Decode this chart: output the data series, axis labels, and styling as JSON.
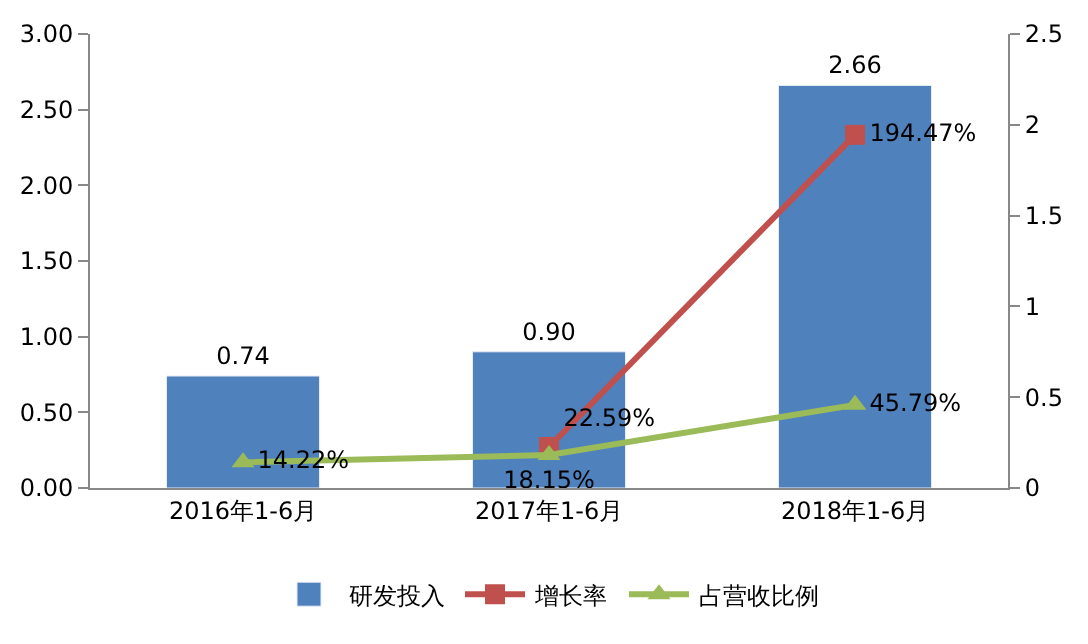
{
  "chart_data": {
    "type": "bar",
    "categories": [
      "2016年1-6月",
      "2017年1-6月",
      "2018年1-6月"
    ],
    "series": [
      {
        "name": "研发投入",
        "color": "#4f81bd",
        "values": [
          0.74,
          0.9,
          2.66
        ],
        "value_labels": [
          "0.74",
          "0.90",
          "2.66"
        ]
      },
      {
        "name": "增长率",
        "type": "line",
        "axis": "y2",
        "color": "#c0504d",
        "marker": "square",
        "values": [
          null,
          0.2259,
          1.9447
        ],
        "value_labels": [
          null,
          "22.59%",
          "194.47%"
        ]
      },
      {
        "name": "占营收比例",
        "type": "line",
        "axis": "y2",
        "color": "#9bbb59",
        "marker": "triangle",
        "values": [
          0.1422,
          0.1815,
          0.4579
        ],
        "value_labels": [
          "14.22%",
          "18.15%",
          "45.79%"
        ]
      }
    ],
    "ylim": [
      0,
      3
    ],
    "yticks": [
      {
        "value": 0,
        "label": "0.00"
      },
      {
        "value": 0.5,
        "label": "0.50"
      },
      {
        "value": 1,
        "label": "1.00"
      },
      {
        "value": 1.5,
        "label": "1.50"
      },
      {
        "value": 2,
        "label": "2.00"
      },
      {
        "value": 2.5,
        "label": "2.50"
      },
      {
        "value": 3,
        "label": "3.00"
      }
    ],
    "y2lim": [
      0,
      2.5
    ],
    "y2ticks": [
      0,
      0.5,
      1,
      1.5,
      2,
      2.5
    ],
    "legend": "bottom"
  }
}
